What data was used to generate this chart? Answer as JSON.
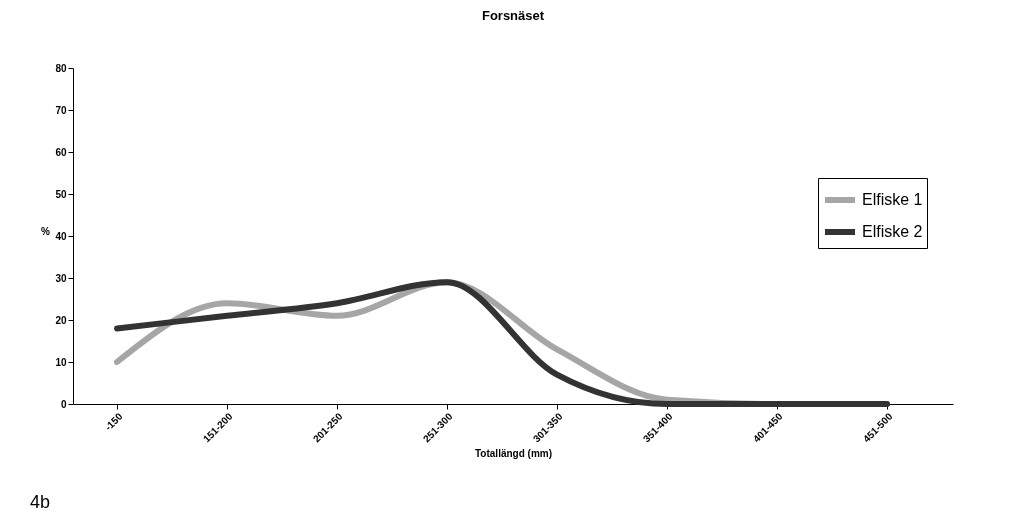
{
  "chart_data": {
    "type": "line",
    "title": "Forsnäset",
    "xlabel": "Totallängd (mm)",
    "ylabel": "%",
    "categories": [
      "-150",
      "151-200",
      "201-250",
      "251-300",
      "301-350",
      "351-400",
      "401-450",
      "451-500"
    ],
    "series": [
      {
        "name": "Elfiske 1",
        "color": "#a6a6a6",
        "values": [
          10,
          24,
          21,
          29,
          13,
          1,
          0,
          0
        ]
      },
      {
        "name": "Elfiske 2",
        "color": "#333333",
        "values": [
          18,
          21,
          24,
          29,
          7,
          0,
          0,
          0
        ]
      }
    ],
    "ylim": [
      0,
      80
    ],
    "yticks": [
      0,
      10,
      20,
      30,
      40,
      50,
      60,
      70,
      80
    ],
    "grid": false,
    "legend": "right",
    "marker": "none",
    "line_style": "solid",
    "annotations": [
      "4b"
    ]
  }
}
